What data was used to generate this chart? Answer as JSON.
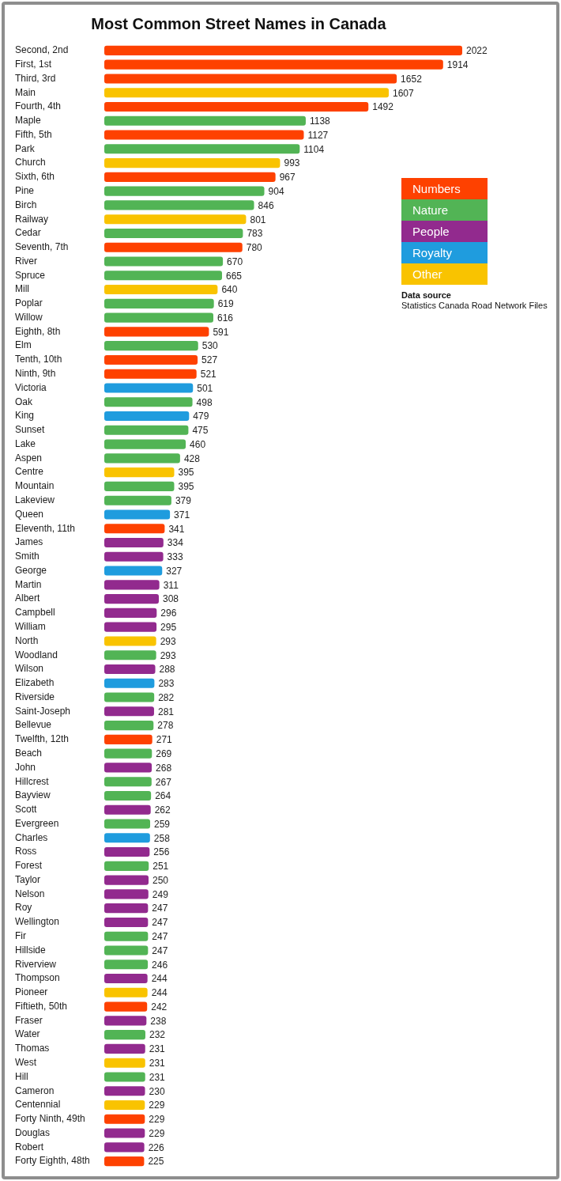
{
  "chart_data": {
    "type": "bar",
    "orientation": "horizontal",
    "title": "Most Common Street Names in Canada",
    "categories": [
      "Second, 2nd",
      "First, 1st",
      "Third, 3rd",
      "Main",
      "Fourth, 4th",
      "Maple",
      "Fifth, 5th",
      "Park",
      "Church",
      "Sixth, 6th",
      "Pine",
      "Birch",
      "Railway",
      "Cedar",
      "Seventh, 7th",
      "River",
      "Spruce",
      "Mill",
      "Poplar",
      "Willow",
      "Eighth, 8th",
      "Elm",
      "Tenth, 10th",
      "Ninth, 9th",
      "Victoria",
      "Oak",
      "King",
      "Sunset",
      "Lake",
      "Aspen",
      "Centre",
      "Mountain",
      "Lakeview",
      "Queen",
      "Eleventh, 11th",
      "James",
      "Smith",
      "George",
      "Martin",
      "Albert",
      "Campbell",
      "William",
      "North",
      "Woodland",
      "Wilson",
      "Elizabeth",
      "Riverside",
      "Saint-Joseph",
      "Bellevue",
      "Twelfth, 12th",
      "Beach",
      "John",
      "Hillcrest",
      "Bayview",
      "Scott",
      "Evergreen",
      "Charles",
      "Ross",
      "Forest",
      "Taylor",
      "Nelson",
      "Roy",
      "Wellington",
      "Fir",
      "Hillside",
      "Riverview",
      "Thompson",
      "Pioneer",
      "Fiftieth, 50th",
      "Fraser",
      "Water",
      "Thomas",
      "West",
      "Hill",
      "Cameron",
      "Centennial",
      "Forty Ninth, 49th",
      "Douglas",
      "Robert",
      "Forty Eighth, 48th"
    ],
    "series": [
      {
        "name": "Numbers",
        "color": "#fe4100",
        "values": [
          2022,
          1914,
          1652,
          null,
          1492,
          null,
          1127,
          null,
          null,
          967,
          null,
          null,
          null,
          null,
          780,
          null,
          null,
          null,
          null,
          null,
          591,
          null,
          527,
          521,
          null,
          null,
          null,
          null,
          null,
          null,
          null,
          null,
          null,
          null,
          341,
          null,
          null,
          null,
          null,
          null,
          null,
          null,
          null,
          null,
          null,
          null,
          null,
          null,
          null,
          271,
          null,
          null,
          null,
          null,
          null,
          null,
          null,
          null,
          null,
          null,
          null,
          null,
          null,
          null,
          null,
          null,
          null,
          null,
          242,
          null,
          null,
          null,
          null,
          null,
          null,
          null,
          229,
          null,
          null,
          225
        ]
      },
      {
        "name": "Nature",
        "color": "#52b455",
        "values": [
          null,
          null,
          null,
          null,
          null,
          1138,
          null,
          1104,
          null,
          null,
          904,
          846,
          null,
          783,
          null,
          670,
          665,
          null,
          619,
          616,
          null,
          530,
          null,
          null,
          null,
          498,
          null,
          475,
          460,
          428,
          null,
          395,
          379,
          null,
          null,
          null,
          null,
          null,
          null,
          null,
          null,
          null,
          null,
          293,
          null,
          null,
          282,
          null,
          278,
          null,
          269,
          null,
          267,
          264,
          null,
          259,
          null,
          null,
          251,
          null,
          null,
          null,
          null,
          247,
          247,
          246,
          null,
          null,
          null,
          null,
          232,
          null,
          null,
          231,
          null,
          null,
          null,
          null,
          null,
          null
        ]
      },
      {
        "name": "People",
        "color": "#922a8e",
        "values": [
          null,
          null,
          null,
          null,
          null,
          null,
          null,
          null,
          null,
          null,
          null,
          null,
          null,
          null,
          null,
          null,
          null,
          null,
          null,
          null,
          null,
          null,
          null,
          null,
          null,
          null,
          null,
          null,
          null,
          null,
          null,
          null,
          null,
          null,
          null,
          334,
          333,
          null,
          311,
          308,
          296,
          295,
          null,
          null,
          288,
          null,
          null,
          281,
          null,
          null,
          null,
          268,
          null,
          null,
          262,
          null,
          null,
          256,
          null,
          250,
          249,
          247,
          247,
          null,
          null,
          null,
          244,
          null,
          null,
          238,
          null,
          231,
          null,
          null,
          230,
          null,
          null,
          229,
          226,
          null
        ]
      },
      {
        "name": "Royalty",
        "color": "#1f9cde",
        "values": [
          null,
          null,
          null,
          null,
          null,
          null,
          null,
          null,
          null,
          null,
          null,
          null,
          null,
          null,
          null,
          null,
          null,
          null,
          null,
          null,
          null,
          null,
          null,
          null,
          501,
          null,
          479,
          null,
          null,
          null,
          null,
          null,
          null,
          371,
          null,
          null,
          null,
          327,
          null,
          null,
          null,
          null,
          null,
          null,
          null,
          283,
          null,
          null,
          null,
          null,
          null,
          null,
          null,
          null,
          null,
          null,
          258,
          null,
          null,
          null,
          null,
          null,
          null,
          null,
          null,
          null,
          null,
          null,
          null,
          null,
          null,
          null,
          null,
          null,
          null,
          null,
          null,
          null,
          null,
          null
        ]
      },
      {
        "name": "Other",
        "color": "#f9c300",
        "values": [
          null,
          null,
          null,
          1607,
          null,
          null,
          null,
          null,
          993,
          null,
          null,
          null,
          801,
          null,
          null,
          null,
          null,
          640,
          null,
          null,
          null,
          null,
          null,
          null,
          null,
          null,
          null,
          null,
          null,
          null,
          395,
          null,
          null,
          null,
          null,
          null,
          null,
          null,
          null,
          null,
          null,
          null,
          293,
          null,
          null,
          null,
          null,
          null,
          null,
          null,
          null,
          null,
          null,
          null,
          null,
          null,
          null,
          null,
          null,
          null,
          null,
          null,
          null,
          null,
          null,
          null,
          null,
          244,
          null,
          null,
          null,
          null,
          231,
          null,
          null,
          229,
          null,
          null,
          null,
          null
        ]
      }
    ],
    "tick_labels": "y",
    "data_labels": true,
    "legend": "top right",
    "annotations": [
      "Data source",
      "Statistics Canada Road Network Files"
    ]
  }
}
